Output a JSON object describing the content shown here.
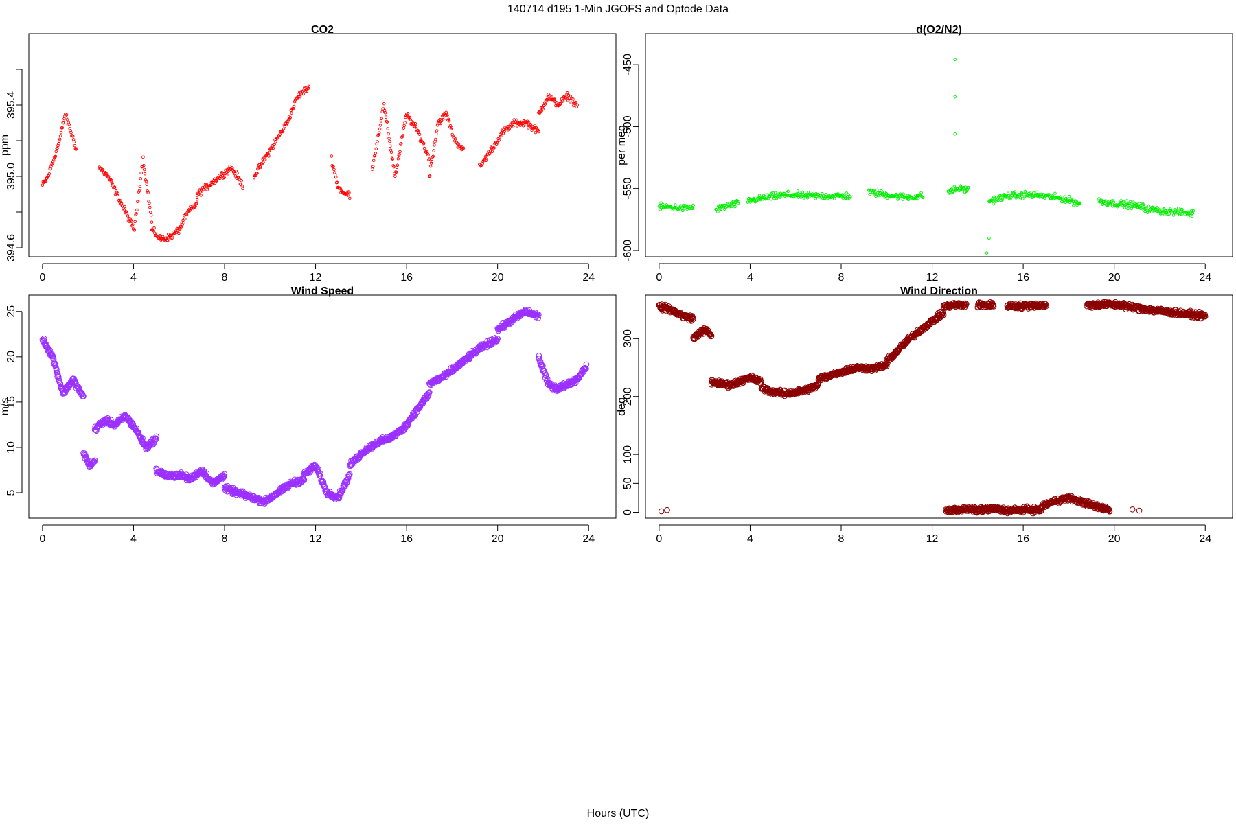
{
  "page_title": "140714   d195   1-Min  JGOFS and Optode Data",
  "xlabel": "Hours (UTC)",
  "chart_data": [
    {
      "id": "co2",
      "type": "scatter",
      "title": "CO2",
      "ylabel": "ppm",
      "color": "#ff0000",
      "marker": "circle-open-small",
      "xlim": [
        -0.6,
        25.2
      ],
      "ylim": [
        394.55,
        395.8
      ],
      "xticks": [
        0,
        4,
        8,
        12,
        16,
        20,
        24
      ],
      "yticks": [
        394.6,
        394.8,
        395.0,
        395.2,
        395.4,
        395.6
      ],
      "ytick_labels": [
        "394.6",
        "",
        "395.0",
        "",
        "395.4",
        ""
      ],
      "segments": [
        {
          "x0": 0.0,
          "x1": 1.5,
          "y": [
            394.95,
            395.0,
            395.1,
            395.2,
            395.35,
            395.25,
            395.15
          ]
        },
        {
          "x0": 2.5,
          "x1": 4.8,
          "y": [
            395.05,
            395.0,
            394.9,
            394.8,
            394.7,
            395.1,
            394.75
          ]
        },
        {
          "x0": 4.8,
          "x1": 6.8,
          "y": [
            394.7,
            394.65,
            394.66,
            394.7,
            394.8,
            394.85
          ]
        },
        {
          "x0": 6.8,
          "x1": 8.8,
          "y": [
            394.9,
            394.95,
            395.0,
            395.05,
            394.95
          ]
        },
        {
          "x0": 9.3,
          "x1": 11.7,
          "y": [
            395.0,
            395.1,
            395.2,
            395.3,
            395.45,
            395.5
          ]
        },
        {
          "x0": 12.7,
          "x1": 13.5,
          "y": [
            395.1,
            394.95,
            394.9,
            394.9
          ]
        },
        {
          "x0": 14.5,
          "x1": 17.0,
          "y": [
            395.05,
            395.4,
            395.0,
            395.35,
            395.25,
            395.1
          ]
        },
        {
          "x0": 17.0,
          "x1": 18.5,
          "y": [
            395.0,
            395.3,
            395.35,
            395.2,
            395.15
          ]
        },
        {
          "x0": 19.2,
          "x1": 21.8,
          "y": [
            395.05,
            395.15,
            395.25,
            395.3,
            395.3,
            395.25
          ]
        },
        {
          "x0": 21.8,
          "x1": 23.5,
          "y": [
            395.35,
            395.45,
            395.4,
            395.45,
            395.4
          ]
        }
      ]
    },
    {
      "id": "o2n2",
      "type": "scatter",
      "title": "d(O2/N2)",
      "ylabel": "per meg",
      "color": "#00ee00",
      "marker": "circle-open-small",
      "xlim": [
        -0.6,
        25.2
      ],
      "ylim": [
        -605,
        -425
      ],
      "xticks": [
        0,
        4,
        8,
        12,
        16,
        20,
        24
      ],
      "yticks": [
        -600,
        -550,
        -500,
        -450
      ],
      "ytick_labels": [
        "-600",
        "-550",
        "-500",
        "-450"
      ],
      "segments": [
        {
          "x0": 0.0,
          "x1": 1.5,
          "y": [
            -565,
            -565,
            -566,
            -565
          ]
        },
        {
          "x0": 2.5,
          "x1": 3.5,
          "y": [
            -567,
            -564,
            -562
          ]
        },
        {
          "x0": 3.9,
          "x1": 8.4,
          "y": [
            -560,
            -557,
            -555,
            -556,
            -556,
            -556
          ]
        },
        {
          "x0": 9.2,
          "x1": 11.6,
          "y": [
            -553,
            -555,
            -557,
            -556
          ]
        },
        {
          "x0": 12.7,
          "x1": 13.6,
          "y": [
            -553,
            -550,
            -551
          ]
        },
        {
          "x0": 14.5,
          "x1": 18.5,
          "y": [
            -560,
            -556,
            -555,
            -556,
            -558,
            -562
          ]
        },
        {
          "x0": 19.3,
          "x1": 21.3,
          "y": [
            -560,
            -562,
            -563,
            -565
          ]
        },
        {
          "x0": 21.3,
          "x1": 23.5,
          "y": [
            -566,
            -568,
            -569,
            -570
          ]
        }
      ],
      "outliers": [
        {
          "x": 13.0,
          "y": -446
        },
        {
          "x": 13.0,
          "y": -476
        },
        {
          "x": 13.0,
          "y": -506
        },
        {
          "x": 14.4,
          "y": -602
        },
        {
          "x": 14.5,
          "y": -590
        }
      ]
    },
    {
      "id": "wind-speed",
      "type": "scatter",
      "title": "Wind Speed",
      "ylabel": "m/s",
      "color": "#9b30ff",
      "marker": "circle-open",
      "xlim": [
        -0.6,
        25.2
      ],
      "ylim": [
        2.2,
        26.8
      ],
      "xticks": [
        0,
        4,
        8,
        12,
        16,
        20,
        24
      ],
      "yticks": [
        5,
        10,
        15,
        20,
        25
      ],
      "ytick_labels": [
        "5",
        "10",
        "15",
        "20",
        "25"
      ],
      "segments": [
        {
          "x0": 0.0,
          "x1": 1.8,
          "y": [
            22.0,
            20.0,
            16.0,
            17.5,
            15.5
          ]
        },
        {
          "x0": 1.8,
          "x1": 2.3,
          "y": [
            9.5,
            8.0,
            8.5
          ]
        },
        {
          "x0": 2.3,
          "x1": 5.0,
          "y": [
            12.0,
            13.0,
            12.5,
            13.5,
            12.0,
            10.0,
            11.0
          ]
        },
        {
          "x0": 5.0,
          "x1": 8.0,
          "y": [
            7.5,
            6.8,
            7.0,
            6.5,
            7.5,
            6.0,
            7.0
          ]
        },
        {
          "x0": 8.0,
          "x1": 11.5,
          "y": [
            5.5,
            5.0,
            4.5,
            4.0,
            5.0,
            6.0,
            6.5
          ]
        },
        {
          "x0": 11.5,
          "x1": 13.5,
          "y": [
            7.0,
            8.0,
            5.0,
            4.5,
            7.0
          ]
        },
        {
          "x0": 13.5,
          "x1": 17.0,
          "y": [
            8.0,
            9.5,
            10.5,
            11.0,
            12.0,
            14.0,
            16.0
          ]
        },
        {
          "x0": 17.0,
          "x1": 20.0,
          "y": [
            17.0,
            18.0,
            19.5,
            21.0,
            22.0
          ]
        },
        {
          "x0": 20.0,
          "x1": 21.8,
          "y": [
            23.0,
            24.0,
            25.0,
            24.5
          ]
        },
        {
          "x0": 21.8,
          "x1": 23.9,
          "y": [
            20.0,
            17.0,
            16.5,
            17.0,
            17.5,
            19.0
          ]
        }
      ]
    },
    {
      "id": "wind-direction",
      "type": "scatter",
      "title": "Wind Direction",
      "ylabel": "deg",
      "color": "#8b0000",
      "marker": "circle-open",
      "xlim": [
        -0.6,
        25.2
      ],
      "ylim": [
        -10,
        375
      ],
      "xticks": [
        0,
        4,
        8,
        12,
        16,
        20,
        24
      ],
      "yticks": [
        0,
        50,
        100,
        200,
        300
      ],
      "ytick_labels": [
        "0",
        "50",
        "100",
        "200",
        "300"
      ],
      "segments": [
        {
          "x0": 0.0,
          "x1": 1.5,
          "y": [
            355,
            352,
            345,
            338,
            335
          ]
        },
        {
          "x0": 1.5,
          "x1": 2.3,
          "y": [
            300,
            310,
            315,
            305
          ]
        },
        {
          "x0": 2.3,
          "x1": 4.5,
          "y": [
            225,
            222,
            220,
            228,
            232,
            225
          ]
        },
        {
          "x0": 4.5,
          "x1": 7.0,
          "y": [
            215,
            208,
            205,
            207,
            212,
            220
          ]
        },
        {
          "x0": 7.0,
          "x1": 10.0,
          "y": [
            230,
            238,
            245,
            250,
            248,
            255
          ]
        },
        {
          "x0": 10.0,
          "x1": 12.5,
          "y": [
            260,
            280,
            300,
            315,
            330,
            345
          ]
        },
        {
          "x0": 12.5,
          "x1": 13.5,
          "y": [
            355,
            358,
            358
          ]
        },
        {
          "x0": 14.0,
          "x1": 14.7,
          "y": [
            358,
            358
          ]
        },
        {
          "x0": 15.3,
          "x1": 17.0,
          "y": [
            357,
            356,
            358,
            357
          ]
        },
        {
          "x0": 18.8,
          "x1": 20.5,
          "y": [
            358,
            359,
            358
          ]
        },
        {
          "x0": 20.5,
          "x1": 24.0,
          "y": [
            356,
            352,
            348,
            345,
            342,
            339
          ]
        },
        {
          "x0": 12.6,
          "x1": 16.8,
          "y": [
            3,
            5,
            4,
            6,
            3,
            5,
            4
          ]
        },
        {
          "x0": 16.8,
          "x1": 19.8,
          "y": [
            10,
            20,
            25,
            18,
            10,
            5
          ]
        }
      ],
      "outliers": [
        {
          "x": 0.1,
          "y": 2
        },
        {
          "x": 0.35,
          "y": 4
        },
        {
          "x": 20.8,
          "y": 5
        },
        {
          "x": 21.1,
          "y": 3
        }
      ]
    }
  ]
}
